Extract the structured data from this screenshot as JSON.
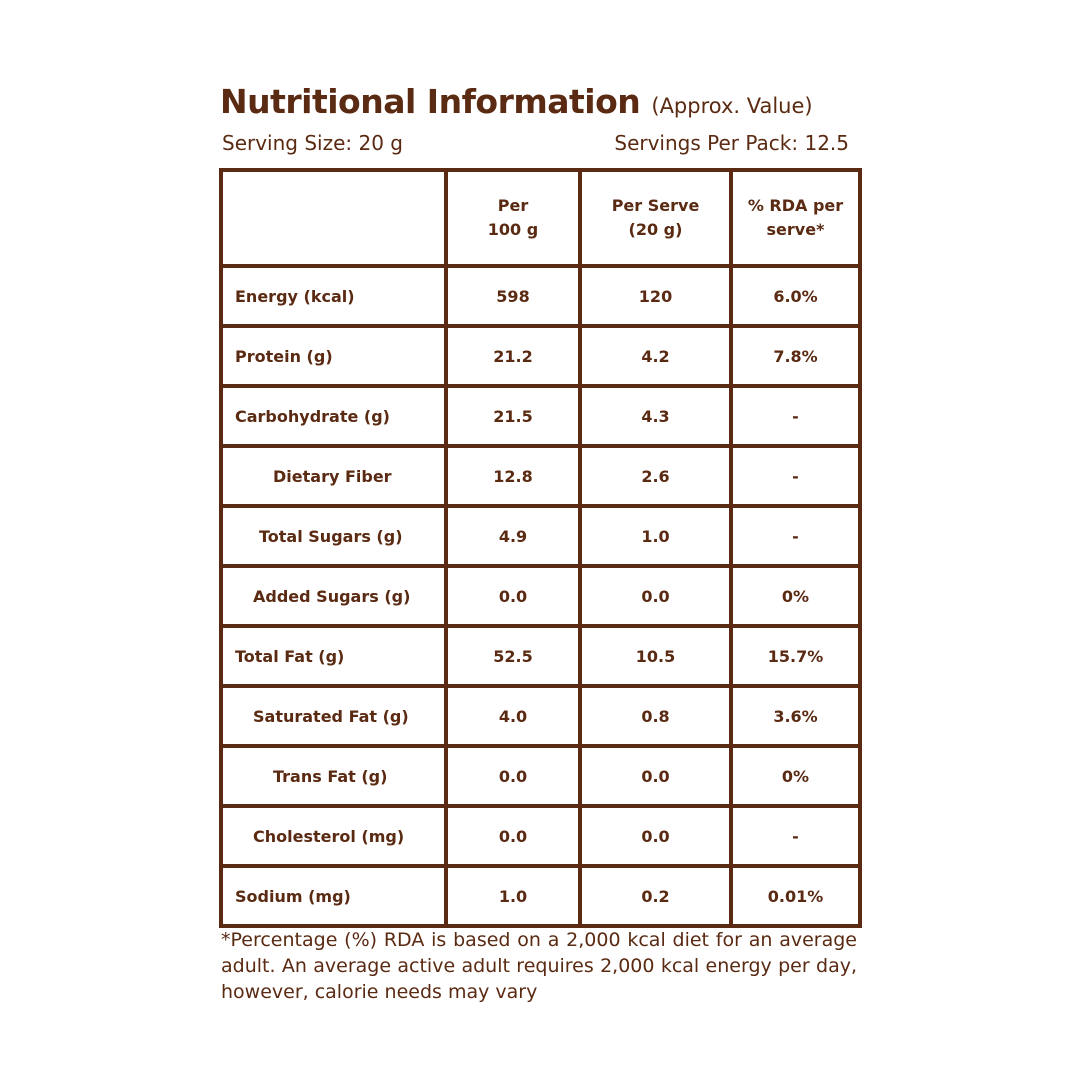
{
  "title": "Nutritional Information",
  "subtitle": "(Approx. Value)",
  "serving_size": "Serving Size: 20 g",
  "servings_per_pack": "Servings Per Pack: 12.5",
  "table": {
    "headers": [
      {
        "line1": "",
        "line2": ""
      },
      {
        "line1": "Per",
        "line2": "100 g"
      },
      {
        "line1": "Per Serve",
        "line2": "(20 g)"
      },
      {
        "line1": "% RDA per",
        "line2": "serve*"
      }
    ],
    "rows": [
      {
        "nutrient": "Energy (kcal)",
        "per_100g": "598",
        "per_serve": "120",
        "rda": "6.0%"
      },
      {
        "nutrient": "Protein (g)",
        "per_100g": "21.2",
        "per_serve": "4.2",
        "rda": "7.8%"
      },
      {
        "nutrient": "Carbohydrate (g)",
        "per_100g": "21.5",
        "per_serve": "4.3",
        "rda": "-"
      },
      {
        "nutrient": "Dietary Fiber",
        "per_100g": "12.8",
        "per_serve": "2.6",
        "rda": "-"
      },
      {
        "nutrient": "Total Sugars (g)",
        "per_100g": "4.9",
        "per_serve": "1.0",
        "rda": "-"
      },
      {
        "nutrient": "Added Sugars (g)",
        "per_100g": "0.0",
        "per_serve": "0.0",
        "rda": "0%"
      },
      {
        "nutrient": "Total Fat (g)",
        "per_100g": "52.5",
        "per_serve": "10.5",
        "rda": "15.7%"
      },
      {
        "nutrient": "Saturated Fat (g)",
        "per_100g": "4.0",
        "per_serve": "0.8",
        "rda": "3.6%"
      },
      {
        "nutrient": "Trans Fat (g)",
        "per_100g": "0.0",
        "per_serve": "0.0",
        "rda": "0%"
      },
      {
        "nutrient": "Cholesterol (mg)",
        "per_100g": "0.0",
        "per_serve": "0.0",
        "rda": "-"
      },
      {
        "nutrient": "Sodium (mg)",
        "per_100g": "1.0",
        "per_serve": "0.2",
        "rda": "0.01%"
      }
    ]
  },
  "footnote": "*Percentage (%) RDA is based on a 2,000 kcal diet for an average adult. An average active adult requires 2,000 kcal energy per day, however, calorie needs may vary",
  "colors": {
    "text": "#5a2a12",
    "border": "#5a2a12",
    "background": "#ffffff"
  }
}
